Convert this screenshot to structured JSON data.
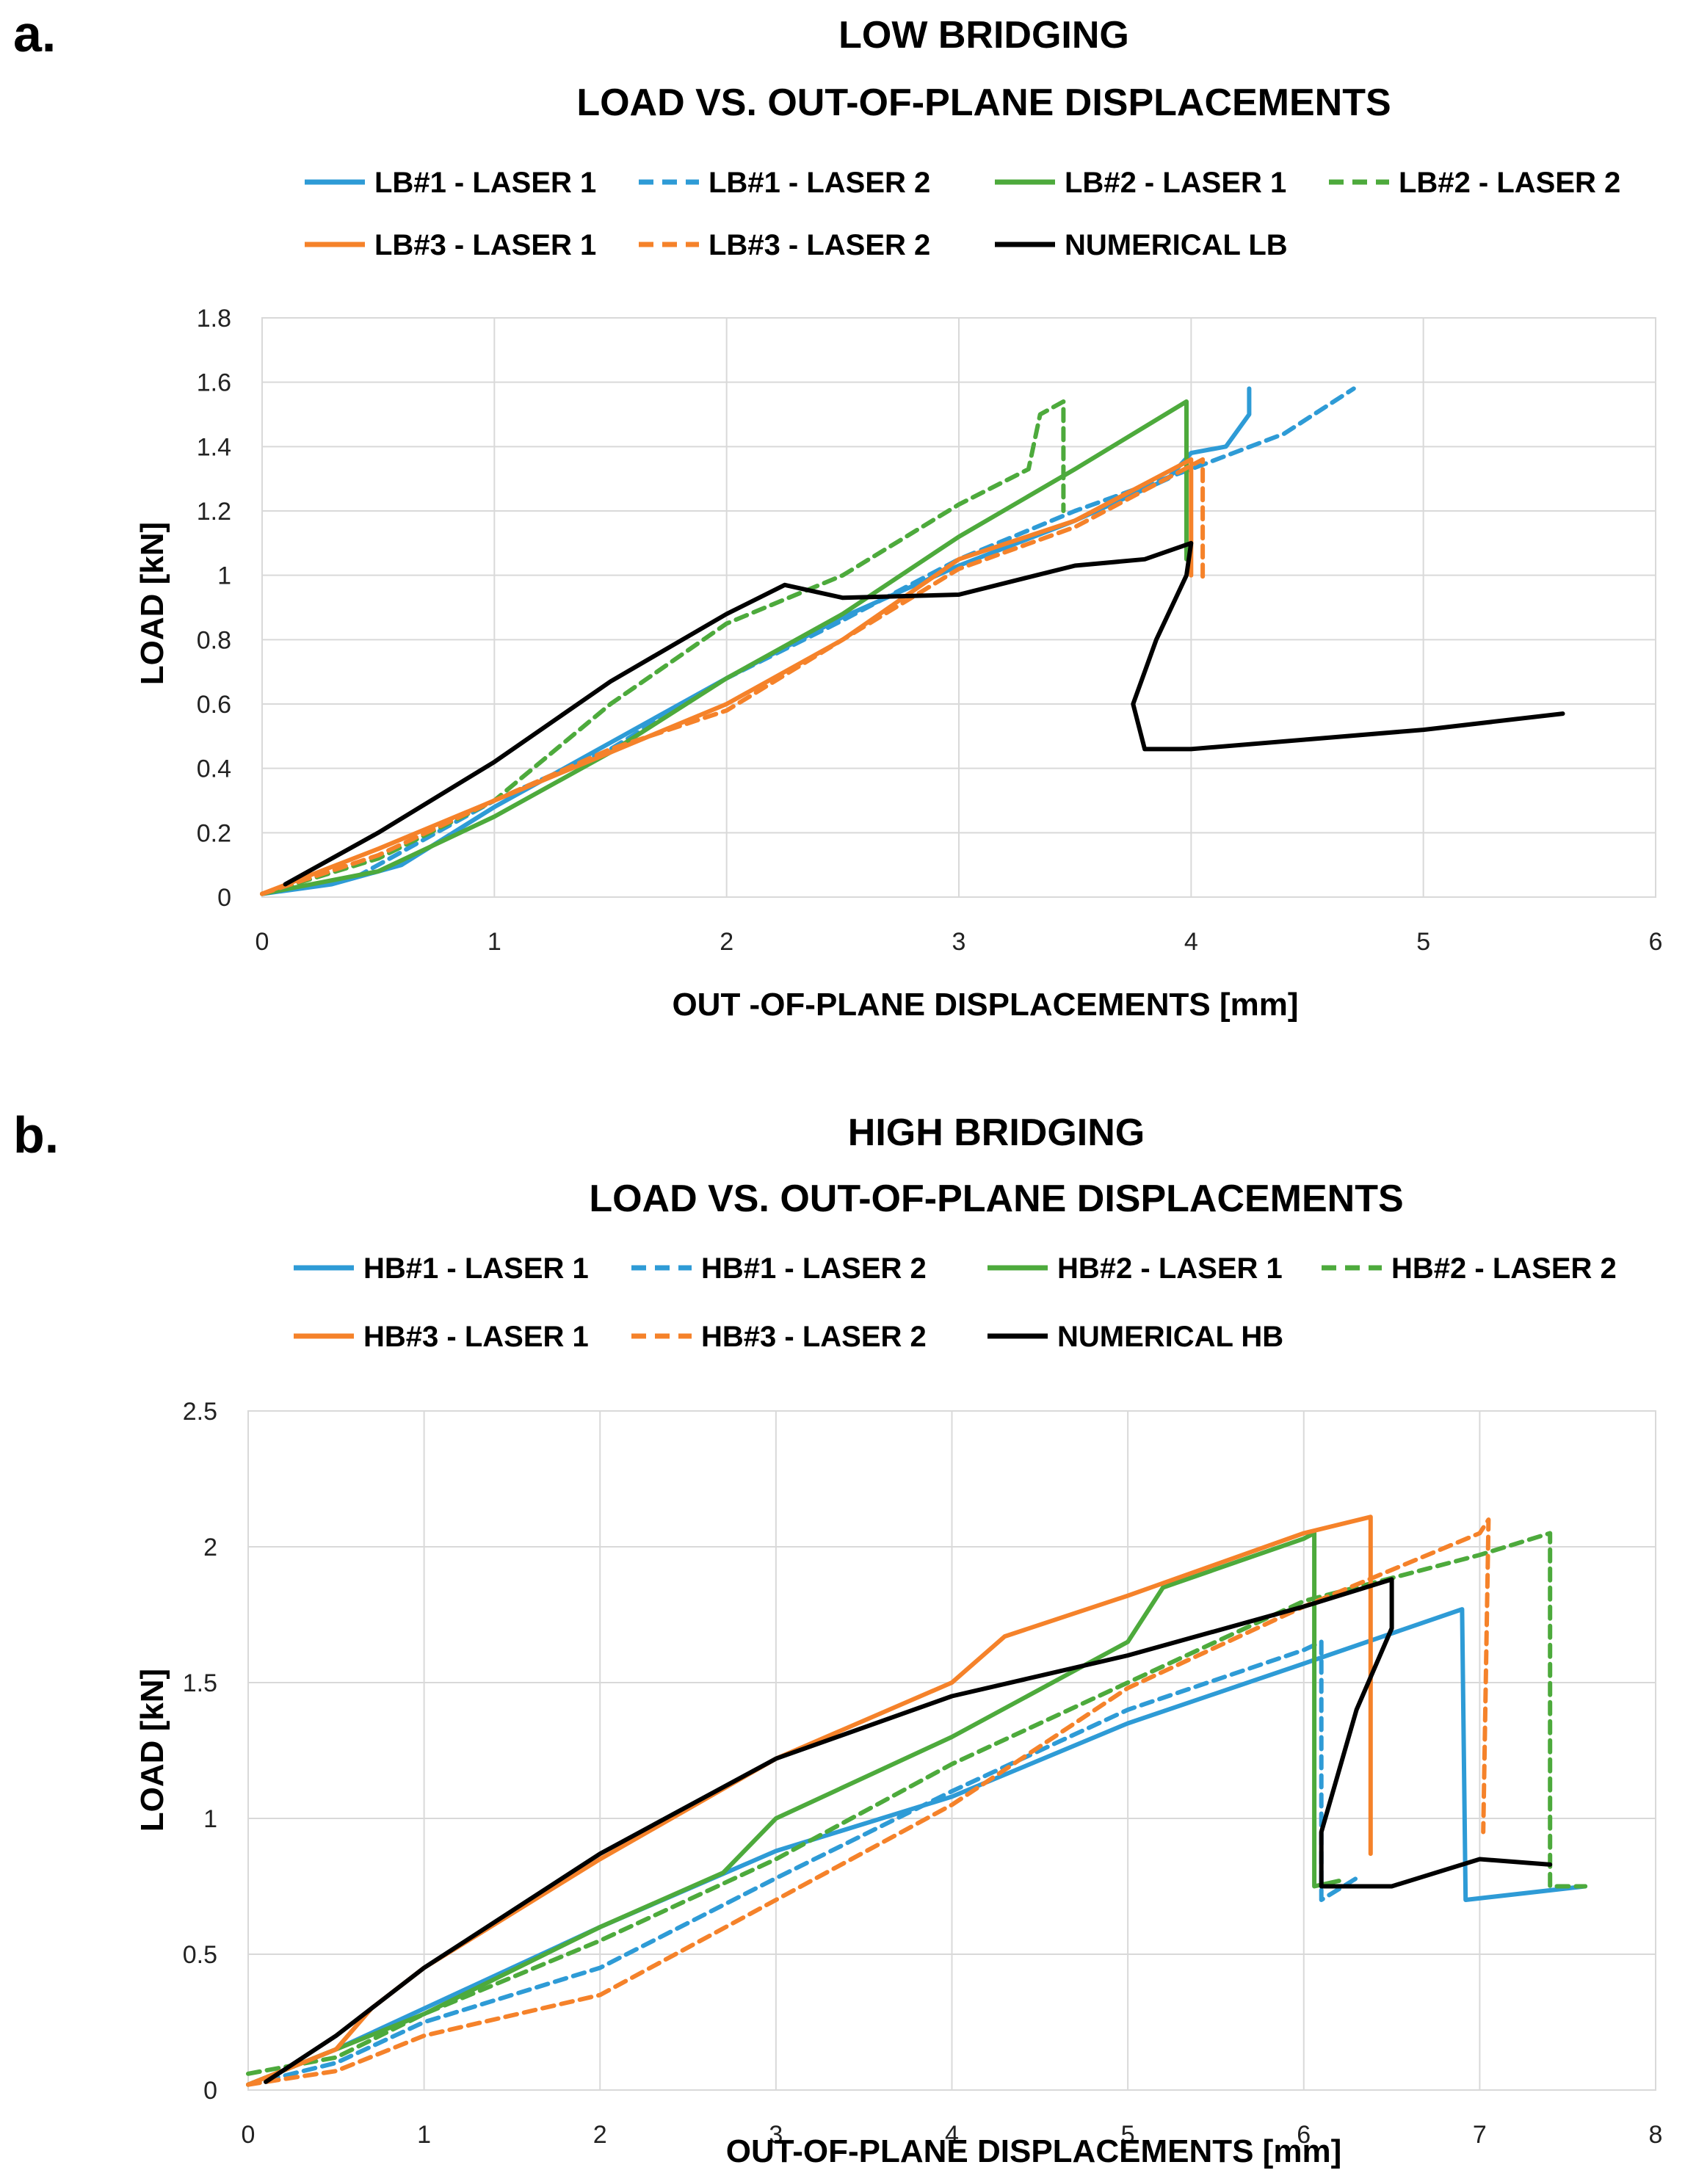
{
  "chart_data": [
    {
      "type": "line",
      "panel_label": "a.",
      "title": "LOW BRIDGING",
      "subtitle": "LOAD VS. OUT-OF-PLANE DISPLACEMENTS",
      "xlabel": "OUT -OF-PLANE DISPLACEMENTS [mm]",
      "ylabel": "LOAD [kN]",
      "xlim": [
        0,
        6
      ],
      "ylim": [
        0,
        1.8
      ],
      "xticks": [
        0,
        1,
        2,
        3,
        4,
        5,
        6
      ],
      "yticks": [
        0,
        0.2,
        0.4,
        0.6,
        0.8,
        1,
        1.2,
        1.4,
        1.6,
        1.8
      ],
      "ytick_labels": [
        "0",
        "0.2",
        "0.4",
        "0.6",
        "0.8",
        "1",
        "1.2",
        "1.4",
        "1.6",
        "1.8"
      ],
      "grid": true,
      "legend_position": "top",
      "series": [
        {
          "name": "LB#1 - LASER 1",
          "color": "#2E9BD6",
          "dash": false,
          "points": [
            [
              0,
              0.01
            ],
            [
              0.3,
              0.04
            ],
            [
              0.6,
              0.1
            ],
            [
              1.0,
              0.28
            ],
            [
              1.5,
              0.48
            ],
            [
              2.0,
              0.68
            ],
            [
              2.5,
              0.87
            ],
            [
              3.0,
              1.03
            ],
            [
              3.5,
              1.17
            ],
            [
              3.9,
              1.3
            ],
            [
              4.0,
              1.38
            ],
            [
              4.15,
              1.4
            ],
            [
              4.25,
              1.5
            ],
            [
              4.25,
              1.58
            ]
          ]
        },
        {
          "name": "LB#1 - LASER 2",
          "color": "#2E9BD6",
          "dash": true,
          "points": [
            [
              0,
              0.01
            ],
            [
              0.4,
              0.06
            ],
            [
              1.0,
              0.3
            ],
            [
              1.5,
              0.46
            ],
            [
              2.0,
              0.68
            ],
            [
              2.5,
              0.86
            ],
            [
              3.0,
              1.05
            ],
            [
              3.5,
              1.2
            ],
            [
              4.0,
              1.33
            ],
            [
              4.4,
              1.44
            ],
            [
              4.7,
              1.58
            ]
          ]
        },
        {
          "name": "LB#2 - LASER 1",
          "color": "#4DAA3C",
          "dash": false,
          "points": [
            [
              0,
              0.01
            ],
            [
              0.5,
              0.08
            ],
            [
              1.0,
              0.25
            ],
            [
              1.5,
              0.45
            ],
            [
              2.0,
              0.68
            ],
            [
              2.5,
              0.88
            ],
            [
              3.0,
              1.12
            ],
            [
              3.5,
              1.33
            ],
            [
              3.98,
              1.54
            ],
            [
              3.98,
              1.05
            ]
          ]
        },
        {
          "name": "LB#2 - LASER 2",
          "color": "#4DAA3C",
          "dash": true,
          "points": [
            [
              0,
              0.01
            ],
            [
              0.5,
              0.12
            ],
            [
              1.0,
              0.3
            ],
            [
              1.5,
              0.6
            ],
            [
              2.0,
              0.85
            ],
            [
              2.5,
              1.0
            ],
            [
              3.0,
              1.22
            ],
            [
              3.3,
              1.33
            ],
            [
              3.35,
              1.5
            ],
            [
              3.45,
              1.54
            ],
            [
              3.45,
              1.2
            ]
          ]
        },
        {
          "name": "LB#3 - LASER 1",
          "color": "#F5822A",
          "dash": false,
          "points": [
            [
              0,
              0.01
            ],
            [
              0.5,
              0.15
            ],
            [
              1.0,
              0.3
            ],
            [
              1.5,
              0.45
            ],
            [
              2.0,
              0.6
            ],
            [
              2.5,
              0.8
            ],
            [
              3.0,
              1.05
            ],
            [
              3.5,
              1.17
            ],
            [
              4.0,
              1.36
            ],
            [
              4.0,
              1.0
            ]
          ]
        },
        {
          "name": "LB#3 - LASER 2",
          "color": "#F5822A",
          "dash": true,
          "points": [
            [
              0,
              0.01
            ],
            [
              0.5,
              0.13
            ],
            [
              1.0,
              0.3
            ],
            [
              1.5,
              0.46
            ],
            [
              2.0,
              0.58
            ],
            [
              2.5,
              0.8
            ],
            [
              3.0,
              1.02
            ],
            [
              3.5,
              1.15
            ],
            [
              4.05,
              1.36
            ],
            [
              4.05,
              0.98
            ]
          ]
        },
        {
          "name": "NUMERICAL LB",
          "color": "#000000",
          "dash": false,
          "points": [
            [
              0.1,
              0.04
            ],
            [
              0.5,
              0.2
            ],
            [
              1.0,
              0.42
            ],
            [
              1.5,
              0.67
            ],
            [
              2.0,
              0.88
            ],
            [
              2.25,
              0.97
            ],
            [
              2.5,
              0.93
            ],
            [
              3.0,
              0.94
            ],
            [
              3.5,
              1.03
            ],
            [
              3.8,
              1.05
            ],
            [
              4.0,
              1.1
            ],
            [
              3.98,
              1.0
            ],
            [
              3.85,
              0.8
            ],
            [
              3.75,
              0.6
            ],
            [
              3.8,
              0.46
            ],
            [
              4.0,
              0.46
            ],
            [
              4.5,
              0.49
            ],
            [
              5.0,
              0.52
            ],
            [
              5.6,
              0.57
            ]
          ]
        }
      ]
    },
    {
      "type": "line",
      "panel_label": "b.",
      "title": "HIGH BRIDGING",
      "subtitle": "LOAD VS. OUT-OF-PLANE DISPLACEMENTS",
      "xlabel": "OUT-OF-PLANE DISPLACEMENTS [mm]",
      "ylabel": "LOAD [kN]",
      "xlim": [
        0,
        8
      ],
      "ylim": [
        0,
        2.5
      ],
      "xticks": [
        0,
        1,
        2,
        3,
        4,
        5,
        6,
        7,
        8
      ],
      "yticks": [
        0,
        0.5,
        1,
        1.5,
        2,
        2.5
      ],
      "ytick_labels": [
        "0",
        "0.5",
        "1",
        "1.5",
        "2",
        "2.5"
      ],
      "grid": true,
      "legend_position": "top",
      "series": [
        {
          "name": "HB#1 - LASER 1",
          "color": "#2E9BD6",
          "dash": false,
          "points": [
            [
              0,
              0.02
            ],
            [
              0.5,
              0.15
            ],
            [
              1.0,
              0.3
            ],
            [
              2.0,
              0.6
            ],
            [
              3.0,
              0.88
            ],
            [
              4.0,
              1.08
            ],
            [
              5.0,
              1.35
            ],
            [
              6.0,
              1.57
            ],
            [
              6.9,
              1.77
            ],
            [
              6.92,
              0.7
            ],
            [
              7.6,
              0.75
            ]
          ]
        },
        {
          "name": "HB#1 - LASER 2",
          "color": "#2E9BD6",
          "dash": true,
          "points": [
            [
              0,
              0.02
            ],
            [
              0.5,
              0.1
            ],
            [
              1.0,
              0.25
            ],
            [
              2.0,
              0.45
            ],
            [
              3.0,
              0.78
            ],
            [
              4.0,
              1.1
            ],
            [
              5.0,
              1.4
            ],
            [
              6.0,
              1.62
            ],
            [
              6.1,
              1.65
            ],
            [
              6.1,
              0.7
            ],
            [
              6.3,
              0.78
            ]
          ]
        },
        {
          "name": "HB#2 - LASER 1",
          "color": "#4DAA3C",
          "dash": false,
          "points": [
            [
              0,
              0.02
            ],
            [
              0.5,
              0.15
            ],
            [
              1.0,
              0.28
            ],
            [
              2.0,
              0.6
            ],
            [
              2.7,
              0.8
            ],
            [
              3.0,
              1.0
            ],
            [
              4.0,
              1.3
            ],
            [
              5.0,
              1.65
            ],
            [
              5.2,
              1.85
            ],
            [
              6.0,
              2.03
            ],
            [
              6.06,
              2.05
            ],
            [
              6.06,
              0.75
            ],
            [
              6.2,
              0.77
            ]
          ]
        },
        {
          "name": "HB#2 - LASER 2",
          "color": "#4DAA3C",
          "dash": true,
          "points": [
            [
              0,
              0.06
            ],
            [
              0.5,
              0.12
            ],
            [
              1.0,
              0.28
            ],
            [
              2.0,
              0.55
            ],
            [
              3.0,
              0.85
            ],
            [
              4.0,
              1.2
            ],
            [
              5.0,
              1.5
            ],
            [
              6.0,
              1.8
            ],
            [
              7.0,
              1.97
            ],
            [
              7.4,
              2.05
            ],
            [
              7.4,
              0.75
            ],
            [
              7.6,
              0.75
            ]
          ]
        },
        {
          "name": "HB#3 - LASER 1",
          "color": "#F5822A",
          "dash": false,
          "points": [
            [
              0,
              0.02
            ],
            [
              0.5,
              0.15
            ],
            [
              0.7,
              0.3
            ],
            [
              1.0,
              0.45
            ],
            [
              2.0,
              0.85
            ],
            [
              3.0,
              1.22
            ],
            [
              4.0,
              1.5
            ],
            [
              4.3,
              1.67
            ],
            [
              5.0,
              1.82
            ],
            [
              6.0,
              2.05
            ],
            [
              6.38,
              2.11
            ],
            [
              6.38,
              0.87
            ]
          ]
        },
        {
          "name": "HB#3 - LASER 2",
          "color": "#F5822A",
          "dash": true,
          "points": [
            [
              0,
              0.02
            ],
            [
              0.5,
              0.07
            ],
            [
              1.0,
              0.2
            ],
            [
              2.0,
              0.35
            ],
            [
              3.0,
              0.7
            ],
            [
              4.0,
              1.05
            ],
            [
              5.0,
              1.48
            ],
            [
              6.0,
              1.78
            ],
            [
              7.0,
              2.05
            ],
            [
              7.05,
              2.1
            ],
            [
              7.02,
              0.95
            ]
          ]
        },
        {
          "name": "NUMERICAL HB",
          "color": "#000000",
          "dash": false,
          "points": [
            [
              0.1,
              0.03
            ],
            [
              0.5,
              0.2
            ],
            [
              1.0,
              0.45
            ],
            [
              2.0,
              0.87
            ],
            [
              3.0,
              1.22
            ],
            [
              4.0,
              1.45
            ],
            [
              5.0,
              1.6
            ],
            [
              6.0,
              1.78
            ],
            [
              6.5,
              1.88
            ],
            [
              6.5,
              1.7
            ],
            [
              6.3,
              1.4
            ],
            [
              6.1,
              0.95
            ],
            [
              6.1,
              0.75
            ],
            [
              6.5,
              0.75
            ],
            [
              7.0,
              0.85
            ],
            [
              7.4,
              0.83
            ]
          ]
        }
      ]
    }
  ]
}
